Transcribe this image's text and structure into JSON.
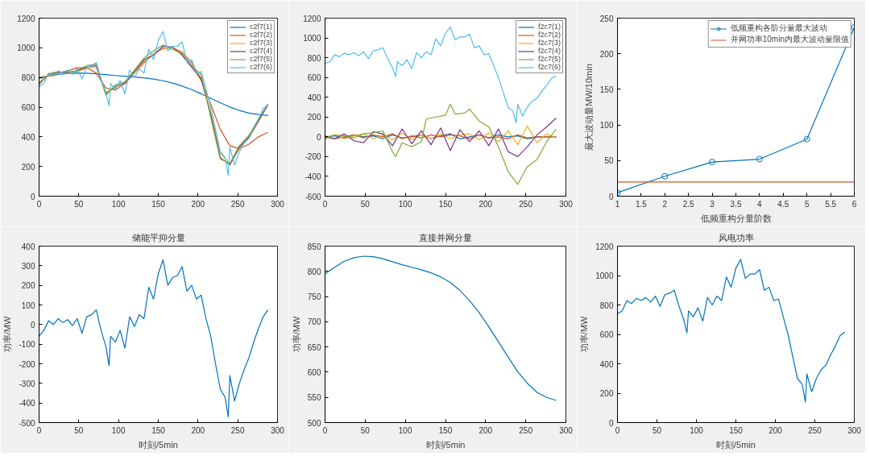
{
  "chart_data": [
    {
      "type": "line",
      "xlim": [
        0,
        300
      ],
      "ylim": [
        0,
        1200
      ],
      "xticks": [
        0,
        50,
        100,
        150,
        200,
        250,
        300
      ],
      "yticks": [
        0,
        200,
        400,
        600,
        800,
        1000,
        1200
      ],
      "legend": "top right",
      "x": [
        0,
        6,
        12,
        18,
        24,
        30,
        36,
        42,
        48,
        54,
        60,
        66,
        72,
        78,
        84,
        88,
        90,
        96,
        102,
        108,
        114,
        120,
        126,
        132,
        138,
        144,
        150,
        156,
        162,
        168,
        174,
        180,
        186,
        192,
        198,
        204,
        210,
        216,
        222,
        228,
        234,
        238,
        240,
        246,
        252,
        258,
        264,
        270,
        276,
        282,
        288
      ],
      "series": [
        {
          "name": "c2f7(1)",
          "color": "#0072bd",
          "x": [
            0,
            12,
            24,
            36,
            48,
            60,
            72,
            84,
            96,
            108,
            120,
            132,
            144,
            156,
            168,
            180,
            192,
            204,
            216,
            228,
            240,
            252,
            264,
            276,
            288
          ],
          "values": [
            795,
            808,
            820,
            827,
            830,
            829,
            825,
            819,
            813,
            808,
            803,
            797,
            789,
            778,
            762,
            742,
            718,
            690,
            660,
            630,
            601,
            578,
            560,
            550,
            544
          ]
        },
        {
          "name": "c2f7(2)",
          "color": "#d95319",
          "x": [
            0,
            12,
            24,
            36,
            48,
            60,
            72,
            84,
            96,
            108,
            120,
            132,
            144,
            156,
            168,
            180,
            192,
            204,
            216,
            228,
            240,
            252,
            264,
            276,
            288
          ],
          "values": [
            800,
            810,
            830,
            845,
            865,
            865,
            830,
            730,
            715,
            760,
            830,
            900,
            960,
            995,
            1000,
            970,
            900,
            780,
            620,
            450,
            340,
            320,
            350,
            400,
            430
          ]
        },
        {
          "name": "c2f7(3)",
          "color": "#edb120",
          "x": [
            0,
            12,
            24,
            36,
            48,
            60,
            72,
            84,
            96,
            108,
            120,
            132,
            144,
            156,
            168,
            180,
            192,
            204,
            216,
            228,
            240,
            252,
            264,
            276,
            288
          ],
          "values": [
            770,
            810,
            840,
            830,
            840,
            860,
            870,
            700,
            730,
            770,
            830,
            910,
            960,
            1000,
            1000,
            960,
            880,
            800,
            560,
            290,
            220,
            320,
            390,
            500,
            620
          ]
        },
        {
          "name": "c2f7(4)",
          "color": "#7e2f8e",
          "x": [
            0,
            12,
            24,
            36,
            48,
            60,
            72,
            84,
            96,
            108,
            120,
            132,
            144,
            156,
            168,
            180,
            192,
            204,
            216,
            228,
            240,
            252,
            264,
            276,
            288
          ],
          "values": [
            760,
            820,
            835,
            835,
            845,
            870,
            880,
            690,
            740,
            760,
            840,
            920,
            950,
            1010,
            1005,
            950,
            870,
            790,
            550,
            260,
            210,
            330,
            400,
            510,
            615
          ]
        },
        {
          "name": "c2f7(5)",
          "color": "#77ac30",
          "x": [
            0,
            12,
            24,
            36,
            48,
            60,
            72,
            84,
            96,
            108,
            120,
            132,
            144,
            156,
            168,
            180,
            192,
            204,
            216,
            228,
            240,
            252,
            264,
            276,
            288
          ],
          "values": [
            750,
            825,
            840,
            825,
            850,
            880,
            890,
            680,
            750,
            770,
            850,
            930,
            980,
            1020,
            990,
            960,
            880,
            820,
            530,
            250,
            220,
            340,
            410,
            520,
            620
          ]
        },
        {
          "name": "c2f7(6)",
          "color": "#4dbeee",
          "values": [
            740,
            760,
            830,
            810,
            845,
            830,
            850,
            820,
            860,
            790,
            870,
            880,
            900,
            790,
            700,
            610,
            760,
            720,
            780,
            690,
            850,
            800,
            860,
            830,
            990,
            920,
            1050,
            1110,
            980,
            1010,
            1010,
            1040,
            900,
            920,
            830,
            840,
            720,
            600,
            450,
            300,
            260,
            140,
            330,
            210,
            300,
            360,
            390,
            460,
            520,
            590,
            615
          ]
        }
      ]
    },
    {
      "type": "line",
      "xlim": [
        0,
        300
      ],
      "ylim": [
        -600,
        1200
      ],
      "xticks": [
        0,
        50,
        100,
        150,
        200,
        250,
        300
      ],
      "yticks": [
        -600,
        -400,
        -200,
        0,
        200,
        400,
        600,
        800,
        1000,
        1200
      ],
      "legend": "top right",
      "x": [
        0,
        6,
        12,
        18,
        24,
        30,
        36,
        42,
        48,
        54,
        60,
        66,
        72,
        78,
        84,
        88,
        90,
        96,
        102,
        108,
        114,
        120,
        126,
        132,
        138,
        144,
        150,
        156,
        162,
        168,
        174,
        180,
        186,
        192,
        198,
        204,
        210,
        216,
        222,
        228,
        234,
        238,
        240,
        246,
        252,
        258,
        264,
        270,
        276,
        282,
        288
      ],
      "series": [
        {
          "name": "f2c7(1)",
          "color": "#0072bd",
          "x": [
            0,
            12,
            24,
            36,
            48,
            60,
            72,
            84,
            96,
            108,
            120,
            132,
            144,
            156,
            168,
            180,
            192,
            204,
            216,
            228,
            240,
            252,
            264,
            276,
            288
          ],
          "values": [
            0,
            10,
            -10,
            20,
            0,
            10,
            -20,
            20,
            -10,
            0,
            20,
            -20,
            10,
            30,
            -20,
            0,
            20,
            -10,
            20,
            0,
            10,
            -20,
            0,
            0,
            0
          ]
        },
        {
          "name": "f2c7(2)",
          "color": "#d95319",
          "x": [
            0,
            12,
            24,
            36,
            48,
            60,
            72,
            84,
            96,
            108,
            120,
            132,
            144,
            156,
            168,
            180,
            192,
            204,
            216,
            228,
            240,
            252,
            264,
            276,
            288
          ],
          "values": [
            10,
            -20,
            0,
            20,
            -10,
            20,
            0,
            30,
            -20,
            10,
            -10,
            20,
            0,
            20,
            10,
            -20,
            20,
            -10,
            0,
            -20,
            20,
            -10,
            0,
            0,
            0
          ]
        },
        {
          "name": "f2c7(3)",
          "color": "#edb120",
          "x": [
            0,
            12,
            24,
            36,
            48,
            60,
            72,
            84,
            96,
            108,
            120,
            132,
            144,
            156,
            168,
            180,
            192,
            204,
            216,
            228,
            240,
            252,
            264,
            276,
            288
          ],
          "values": [
            -10,
            20,
            -20,
            10,
            30,
            -20,
            20,
            -30,
            40,
            -30,
            20,
            -20,
            30,
            -20,
            20,
            30,
            -30,
            40,
            -50,
            60,
            -80,
            110,
            -60,
            30,
            -10
          ]
        },
        {
          "name": "f2c7(4)",
          "color": "#7e2f8e",
          "x": [
            0,
            12,
            24,
            36,
            48,
            60,
            72,
            84,
            96,
            108,
            120,
            132,
            144,
            156,
            168,
            180,
            192,
            204,
            216,
            228,
            240,
            252,
            264,
            276,
            288
          ],
          "values": [
            0,
            -20,
            30,
            -40,
            -60,
            50,
            30,
            -90,
            80,
            -70,
            60,
            -80,
            90,
            -140,
            70,
            -50,
            60,
            -90,
            80,
            -150,
            -200,
            -100,
            20,
            100,
            190
          ]
        },
        {
          "name": "f2c7(5)",
          "color": "#77ac30",
          "x": [
            0,
            12,
            24,
            36,
            48,
            60,
            72,
            84,
            88,
            96,
            108,
            120,
            126,
            138,
            150,
            156,
            162,
            174,
            180,
            192,
            204,
            216,
            228,
            240,
            252,
            264,
            276,
            288
          ],
          "values": [
            -20,
            20,
            10,
            -10,
            30,
            40,
            60,
            -150,
            -200,
            -60,
            -100,
            -50,
            180,
            200,
            220,
            330,
            230,
            240,
            280,
            160,
            100,
            -100,
            -350,
            -480,
            -300,
            -230,
            -50,
            80
          ]
        },
        {
          "name": "f2c7(6)",
          "color": "#4dbeee",
          "values": [
            740,
            760,
            830,
            810,
            845,
            830,
            850,
            820,
            860,
            790,
            870,
            880,
            900,
            790,
            700,
            610,
            760,
            720,
            780,
            690,
            850,
            800,
            860,
            830,
            990,
            920,
            1050,
            1110,
            980,
            1010,
            1010,
            1040,
            900,
            920,
            830,
            840,
            720,
            600,
            450,
            300,
            260,
            140,
            330,
            210,
            300,
            360,
            390,
            460,
            520,
            590,
            615
          ]
        }
      ]
    },
    {
      "type": "line",
      "xlabel": "低频重构分量阶数",
      "ylabel": "最大波动量MW/10min",
      "xlim": [
        1,
        6
      ],
      "ylim": [
        0,
        250
      ],
      "xticks": [
        1,
        1.5,
        2,
        2.5,
        3,
        3.5,
        4,
        4.5,
        5,
        5.5,
        6
      ],
      "yticks": [
        0,
        50,
        100,
        150,
        200,
        250
      ],
      "legend": "top right",
      "x": [
        1,
        2,
        3,
        4,
        5,
        6
      ],
      "series": [
        {
          "name": "低频重构各阶分量最大波动",
          "color": "#0072bd",
          "marker": "circle",
          "values": [
            5,
            28,
            48,
            52,
            80,
            237
          ]
        }
      ],
      "ref_lines": [
        {
          "axis": "y",
          "value": 20,
          "label": "并网功率10min内最大波动量限值",
          "color": "#d95319"
        }
      ]
    },
    {
      "type": "line",
      "title": "储能平抑分量",
      "xlabel": "时刻/5min",
      "ylabel": "功率/MW",
      "xlim": [
        0,
        300
      ],
      "ylim": [
        -500,
        400
      ],
      "xticks": [
        0,
        50,
        100,
        150,
        200,
        250,
        300
      ],
      "yticks": [
        -500,
        -400,
        -300,
        -200,
        -100,
        0,
        100,
        200,
        300,
        400
      ],
      "x": [
        0,
        6,
        12,
        18,
        24,
        30,
        36,
        42,
        48,
        54,
        60,
        66,
        72,
        78,
        84,
        88,
        90,
        96,
        102,
        108,
        114,
        120,
        126,
        132,
        138,
        144,
        150,
        156,
        162,
        168,
        174,
        180,
        186,
        192,
        198,
        204,
        210,
        216,
        222,
        228,
        234,
        238,
        240,
        246,
        252,
        258,
        264,
        270,
        276,
        282,
        288
      ],
      "series": [
        {
          "color": "#0072bd",
          "values": [
            -60,
            -30,
            20,
            0,
            30,
            10,
            25,
            -5,
            30,
            -45,
            40,
            50,
            75,
            -30,
            -110,
            -210,
            -60,
            -90,
            -30,
            -120,
            40,
            -10,
            50,
            30,
            190,
            130,
            260,
            330,
            200,
            240,
            250,
            295,
            170,
            200,
            130,
            150,
            30,
            -60,
            -200,
            -330,
            -370,
            -470,
            -260,
            -390,
            -300,
            -230,
            -170,
            -90,
            -20,
            40,
            75
          ]
        }
      ]
    },
    {
      "type": "line",
      "title": "直接并网分量",
      "xlabel": "时刻/5min",
      "ylabel": "功率/MW",
      "xlim": [
        0,
        300
      ],
      "ylim": [
        500,
        850
      ],
      "xticks": [
        0,
        50,
        100,
        150,
        200,
        250,
        300
      ],
      "yticks": [
        500,
        550,
        600,
        650,
        700,
        750,
        800,
        850
      ],
      "x": [
        0,
        12,
        24,
        36,
        48,
        60,
        72,
        84,
        96,
        108,
        120,
        132,
        144,
        156,
        168,
        180,
        192,
        204,
        216,
        228,
        240,
        252,
        264,
        276,
        288
      ],
      "series": [
        {
          "color": "#0072bd",
          "values": [
            795,
            808,
            820,
            827,
            830,
            829,
            825,
            819,
            813,
            808,
            803,
            797,
            789,
            778,
            762,
            742,
            718,
            690,
            660,
            630,
            601,
            578,
            560,
            550,
            544
          ]
        }
      ]
    },
    {
      "type": "line",
      "title": "风电功率",
      "xlabel": "时刻/5min",
      "ylabel": "功率/MW",
      "xlim": [
        0,
        300
      ],
      "ylim": [
        0,
        1200
      ],
      "xticks": [
        0,
        50,
        100,
        150,
        200,
        250,
        300
      ],
      "yticks": [
        0,
        200,
        400,
        600,
        800,
        1000,
        1200
      ],
      "x": [
        0,
        6,
        12,
        18,
        24,
        30,
        36,
        42,
        48,
        54,
        60,
        66,
        72,
        78,
        84,
        88,
        90,
        96,
        102,
        108,
        114,
        120,
        126,
        132,
        138,
        144,
        150,
        156,
        162,
        168,
        174,
        180,
        186,
        192,
        198,
        204,
        210,
        216,
        222,
        228,
        234,
        238,
        240,
        246,
        252,
        258,
        264,
        270,
        276,
        282,
        288
      ],
      "series": [
        {
          "color": "#0072bd",
          "values": [
            740,
            760,
            830,
            810,
            845,
            830,
            850,
            820,
            860,
            790,
            870,
            880,
            900,
            790,
            700,
            610,
            760,
            720,
            780,
            690,
            850,
            800,
            860,
            830,
            990,
            920,
            1050,
            1110,
            980,
            1010,
            1010,
            1040,
            900,
            920,
            830,
            840,
            720,
            600,
            450,
            300,
            260,
            140,
            330,
            210,
            300,
            360,
            390,
            460,
            520,
            590,
            615
          ]
        }
      ]
    }
  ]
}
